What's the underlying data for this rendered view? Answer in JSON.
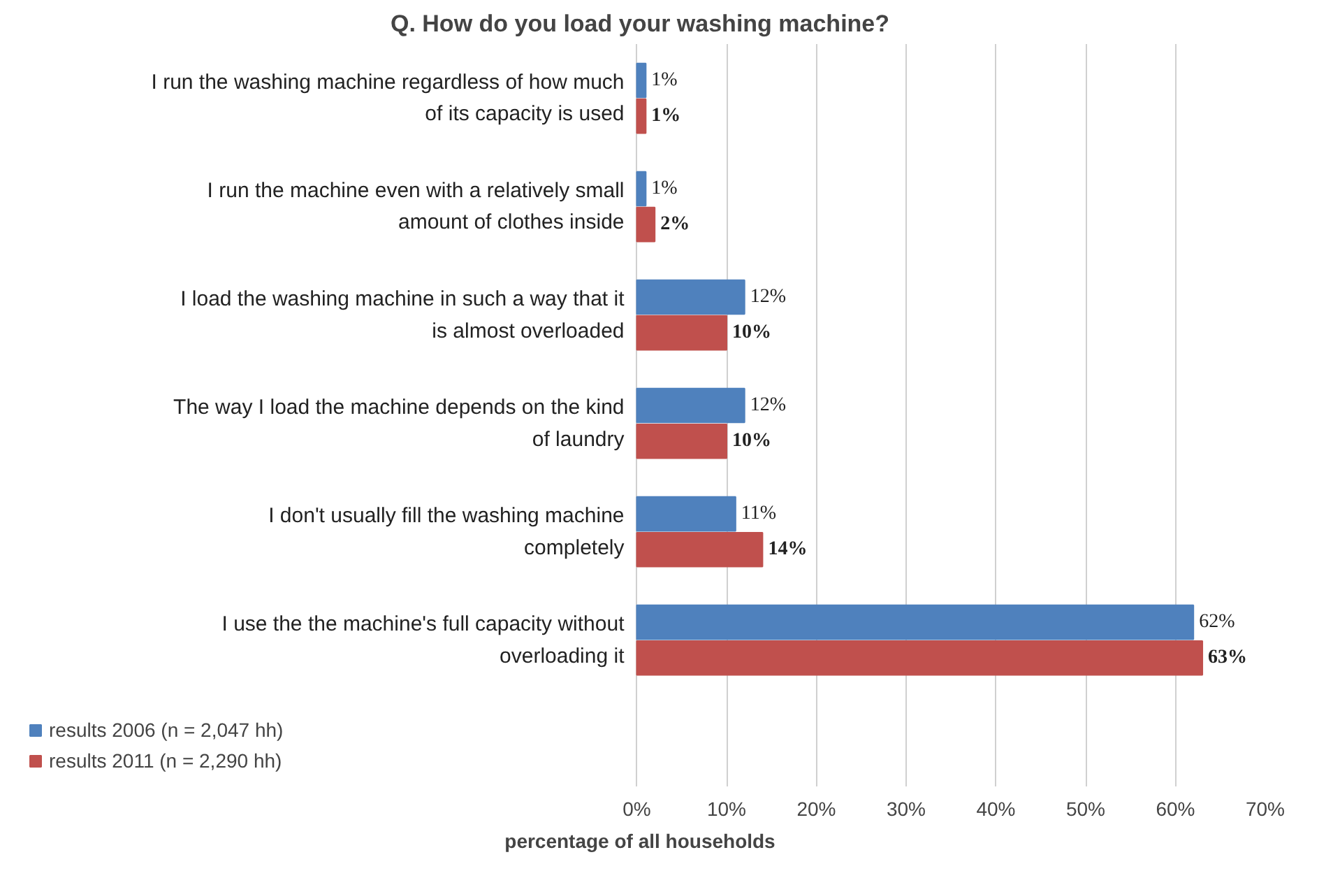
{
  "chart_data": {
    "type": "bar",
    "orientation": "horizontal",
    "title": "Q. How do you load your washing machine?",
    "xlabel": "percentage of all households",
    "categories": [
      "I run the washing machine regardless of how much of its capacity is used",
      "I run the machine even with a relatively small amount of clothes inside",
      "I load the washing machine in such a way that it is almost overloaded",
      "The way I load the machine depends on the kind of laundry",
      "I don't usually fill the washing machine completely",
      "I use the the machine's full capacity without overloading it"
    ],
    "series": [
      {
        "name": "results 2006 (n = 2,047 hh)",
        "color": "#4f81bd",
        "values": [
          1,
          1,
          12,
          12,
          11,
          62
        ],
        "value_labels": [
          "1%",
          "1%",
          "12%",
          "12%",
          "11%",
          "62%"
        ]
      },
      {
        "name": "results 2011 (n = 2,290 hh)",
        "color": "#c0504d",
        "values": [
          1,
          2,
          10,
          10,
          14,
          63
        ],
        "value_labels": [
          "1%",
          "2%",
          "10%",
          "10%",
          "14%",
          "63%"
        ]
      }
    ],
    "xlim": [
      0,
      70
    ],
    "xticks": [
      {
        "value": 0,
        "label": "0%"
      },
      {
        "value": 10,
        "label": "10%"
      },
      {
        "value": 20,
        "label": "20%"
      },
      {
        "value": 30,
        "label": "30%"
      },
      {
        "value": 40,
        "label": "40%"
      },
      {
        "value": 50,
        "label": "50%"
      },
      {
        "value": 60,
        "label": "60%"
      },
      {
        "value": 70,
        "label": "70%"
      }
    ],
    "grid": "x",
    "legend": "bottom left"
  }
}
